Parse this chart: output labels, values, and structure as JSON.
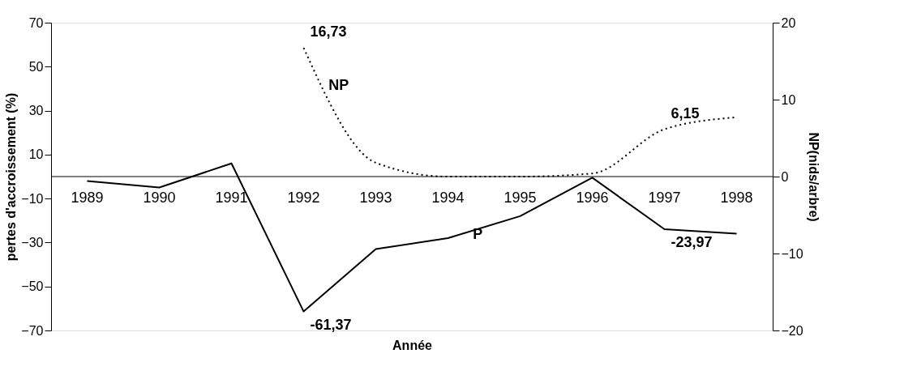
{
  "chart_data": {
    "type": "line",
    "xlabel": "Année",
    "ylabel": "pertes d'accroissement (%)",
    "y2label": "NP(nids/arbre)",
    "categories": [
      "1989",
      "1990",
      "1991",
      "1992",
      "1993",
      "1994",
      "1995",
      "1996",
      "1997",
      "1998"
    ],
    "series": [
      {
        "name": "P",
        "color": "#000000",
        "line_style": "solid",
        "values": [
          -2,
          -5,
          6,
          -61.37,
          -33,
          -28,
          -18,
          -0.5,
          -23.97,
          -26
        ],
        "value_labels": [
          null,
          null,
          null,
          "-61,37",
          null,
          null,
          null,
          null,
          "-23,97",
          null
        ]
      },
      {
        "name": "NP",
        "color": "#000000",
        "line_style": "dotted",
        "axis": "y2",
        "values": [
          null,
          null,
          null,
          16.73,
          1.8,
          0,
          0,
          0.4,
          6.15,
          7.7
        ],
        "value_labels": [
          null,
          null,
          null,
          "16,73",
          null,
          null,
          null,
          null,
          "6,15",
          null
        ]
      }
    ],
    "ylim": [
      -70,
      70
    ],
    "yticks": [
      -70,
      -50,
      -30,
      -10,
      10,
      30,
      50,
      70
    ],
    "y2lim": [
      -20,
      20
    ],
    "y2ticks": [
      -20,
      -10,
      0,
      10,
      20
    ],
    "marker": "none"
  }
}
